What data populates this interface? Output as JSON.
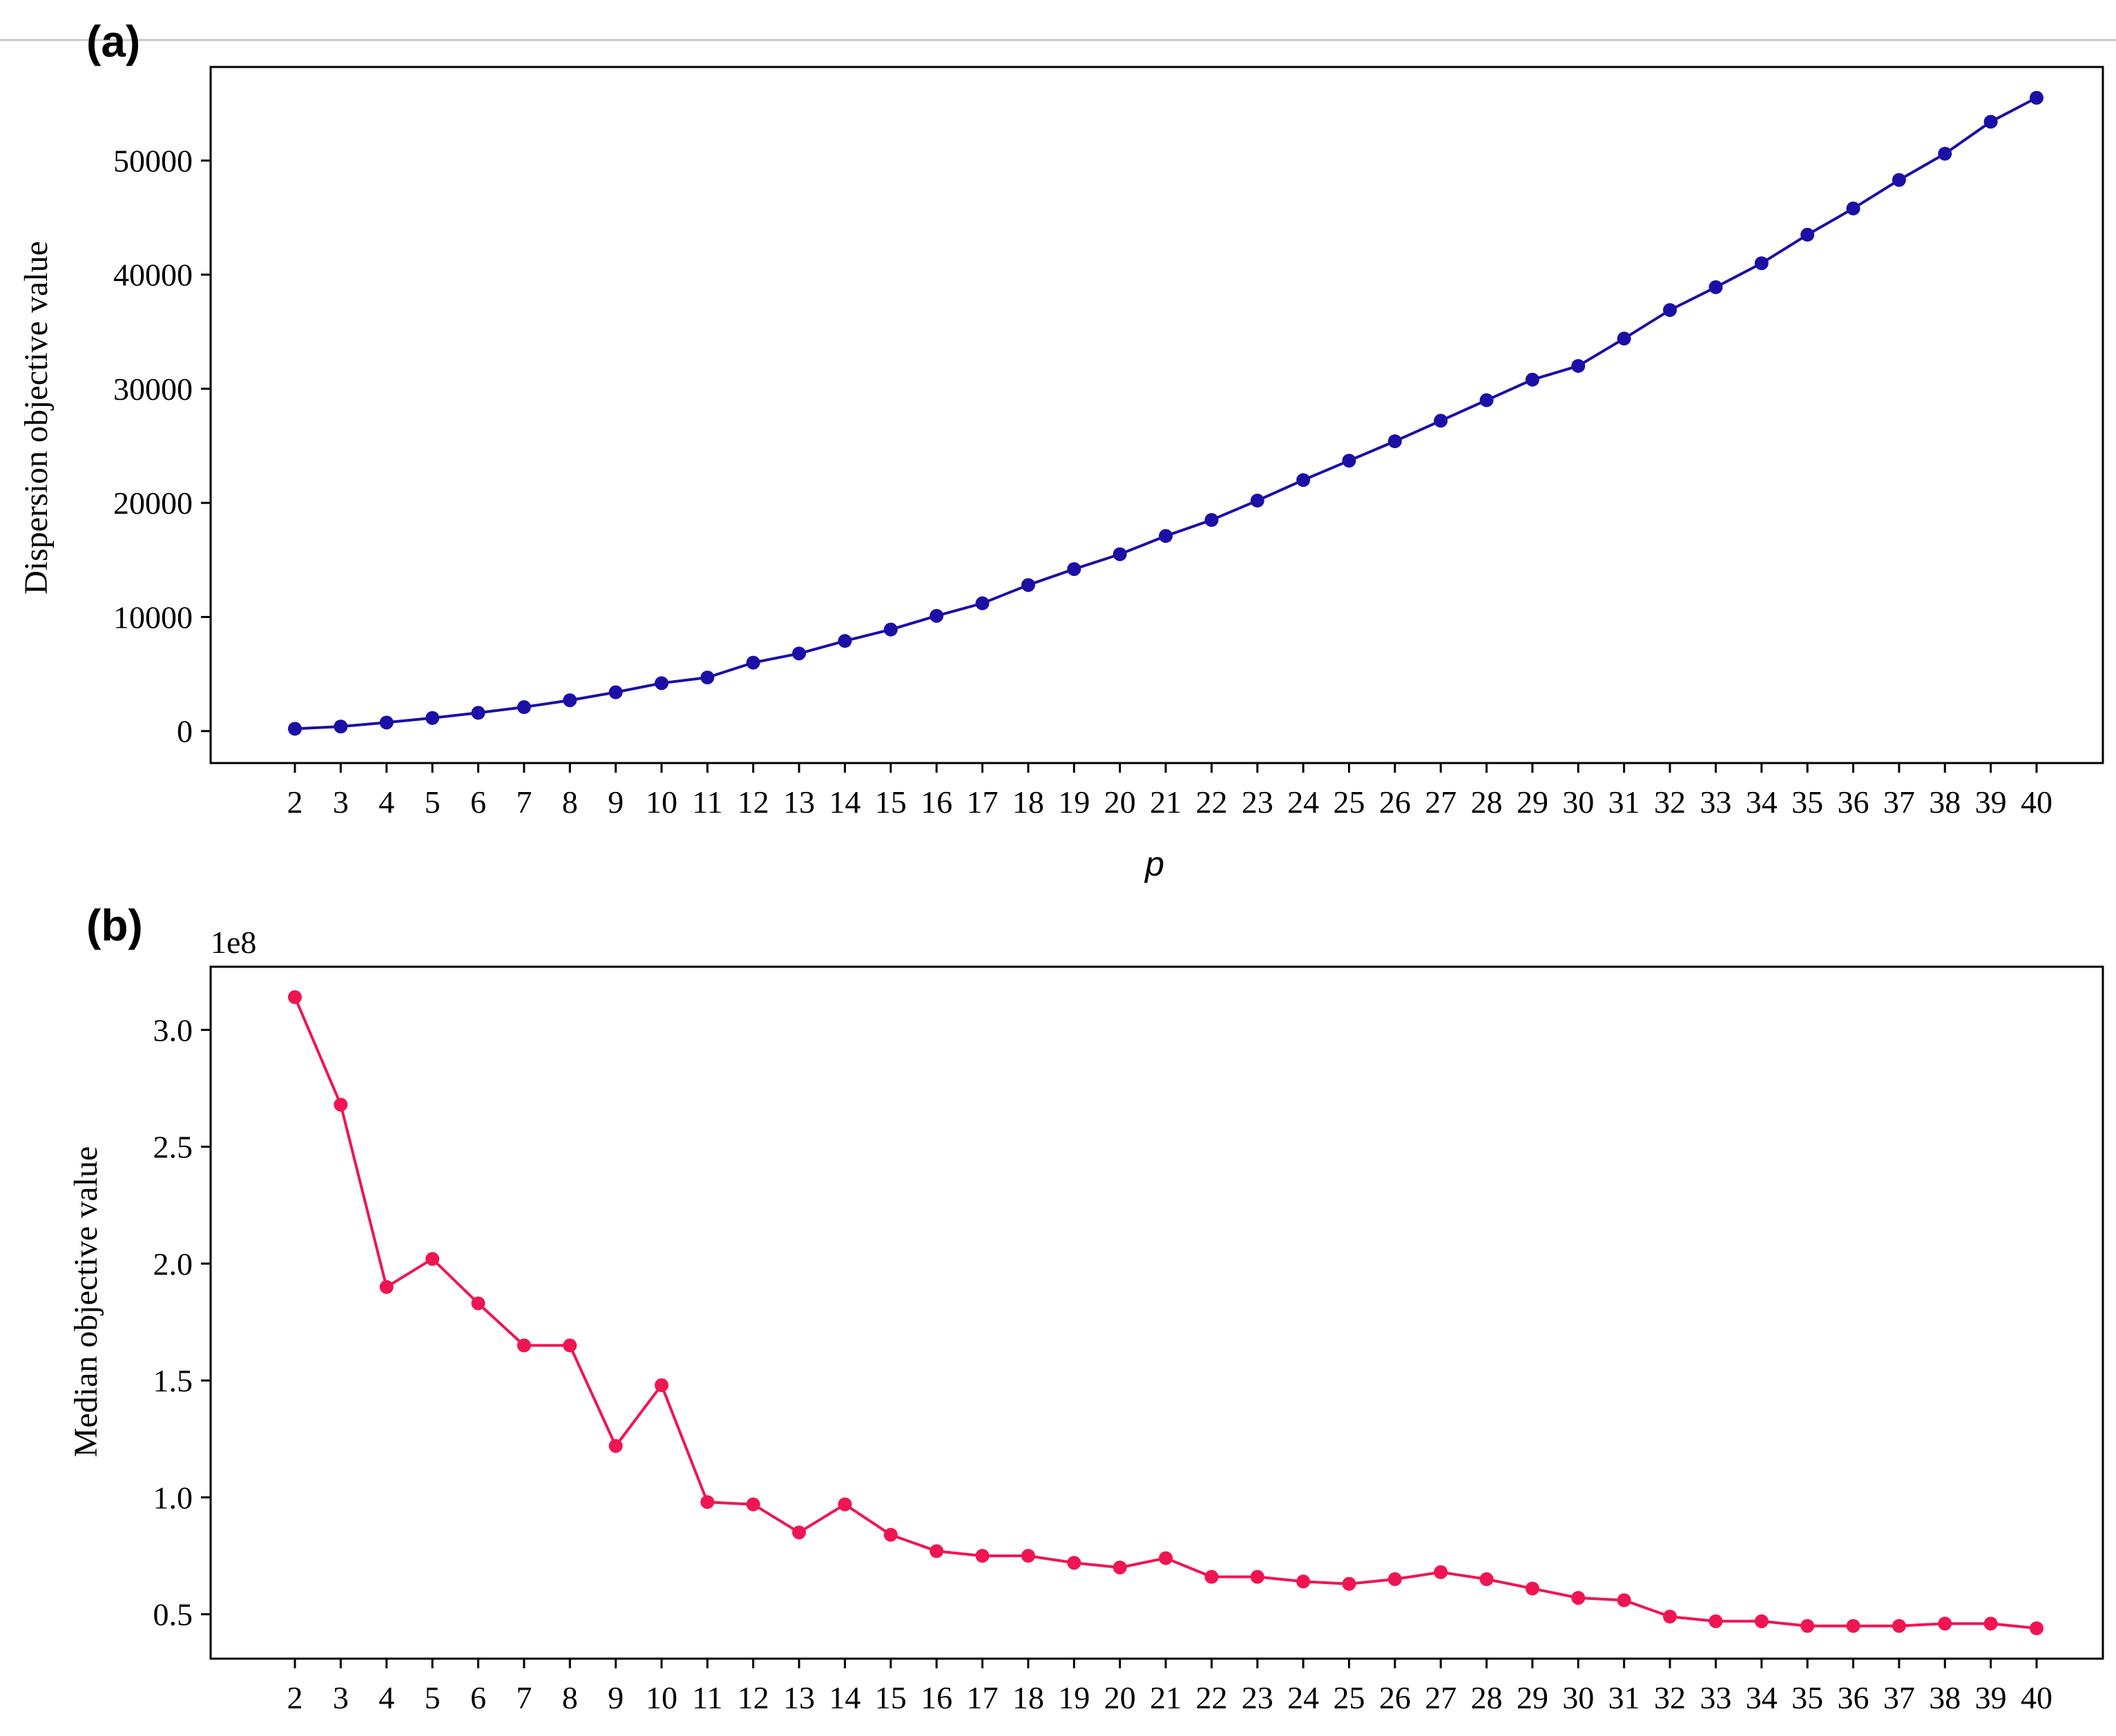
{
  "chart_data": [
    {
      "panel_label": "(a)",
      "type": "line",
      "xlabel": "p",
      "ylabel": "Dispersion objective value",
      "x": [
        2,
        3,
        4,
        5,
        6,
        7,
        8,
        9,
        10,
        11,
        12,
        13,
        14,
        15,
        16,
        17,
        18,
        19,
        20,
        21,
        22,
        23,
        24,
        25,
        26,
        27,
        28,
        29,
        30,
        31,
        32,
        33,
        34,
        35,
        36,
        37,
        38,
        39,
        40
      ],
      "series": [
        {
          "values": [
            200,
            400,
            750,
            1150,
            1600,
            2100,
            2700,
            3400,
            4200,
            4700,
            6000,
            6800,
            7900,
            8900,
            10100,
            11200,
            12800,
            14200,
            15500,
            17100,
            18500,
            20200,
            22000,
            23700,
            25400,
            27200,
            29000,
            30800,
            32000,
            34400,
            36900,
            38900,
            41000,
            43500,
            45800,
            48300,
            50600,
            53400,
            55500
          ]
        }
      ],
      "ylim": [
        -2800,
        58200
      ],
      "yticks": [
        0,
        10000,
        20000,
        30000,
        40000,
        50000
      ],
      "ytick_labels": [
        "0",
        "10000",
        "20000",
        "30000",
        "40000",
        "50000"
      ],
      "grid": false,
      "color": "#1c0fa6"
    },
    {
      "panel_label": "(b)",
      "type": "line",
      "xlabel": "",
      "ylabel": "Median objective value",
      "offset_text": "1e8",
      "x": [
        2,
        3,
        4,
        5,
        6,
        7,
        8,
        9,
        10,
        11,
        12,
        13,
        14,
        15,
        16,
        17,
        18,
        19,
        20,
        21,
        22,
        23,
        24,
        25,
        26,
        27,
        28,
        29,
        30,
        31,
        32,
        33,
        34,
        35,
        36,
        37,
        38,
        39,
        40
      ],
      "series": [
        {
          "values": [
            3.14,
            2.68,
            1.9,
            2.02,
            1.83,
            1.65,
            1.65,
            1.22,
            1.48,
            0.98,
            0.97,
            0.85,
            0.97,
            0.84,
            0.77,
            0.75,
            0.75,
            0.72,
            0.7,
            0.74,
            0.66,
            0.66,
            0.64,
            0.63,
            0.65,
            0.68,
            0.65,
            0.61,
            0.57,
            0.56,
            0.49,
            0.47,
            0.47,
            0.45,
            0.45,
            0.45,
            0.46,
            0.46,
            0.44
          ]
        }
      ],
      "ylim": [
        0.31,
        3.27
      ],
      "yticks": [
        0.5,
        1.0,
        1.5,
        2.0,
        2.5,
        3.0
      ],
      "ytick_labels": [
        "0.5",
        "1.0",
        "1.5",
        "2.0",
        "2.5",
        "3.0"
      ],
      "grid": false,
      "color": "#ef1553"
    }
  ]
}
